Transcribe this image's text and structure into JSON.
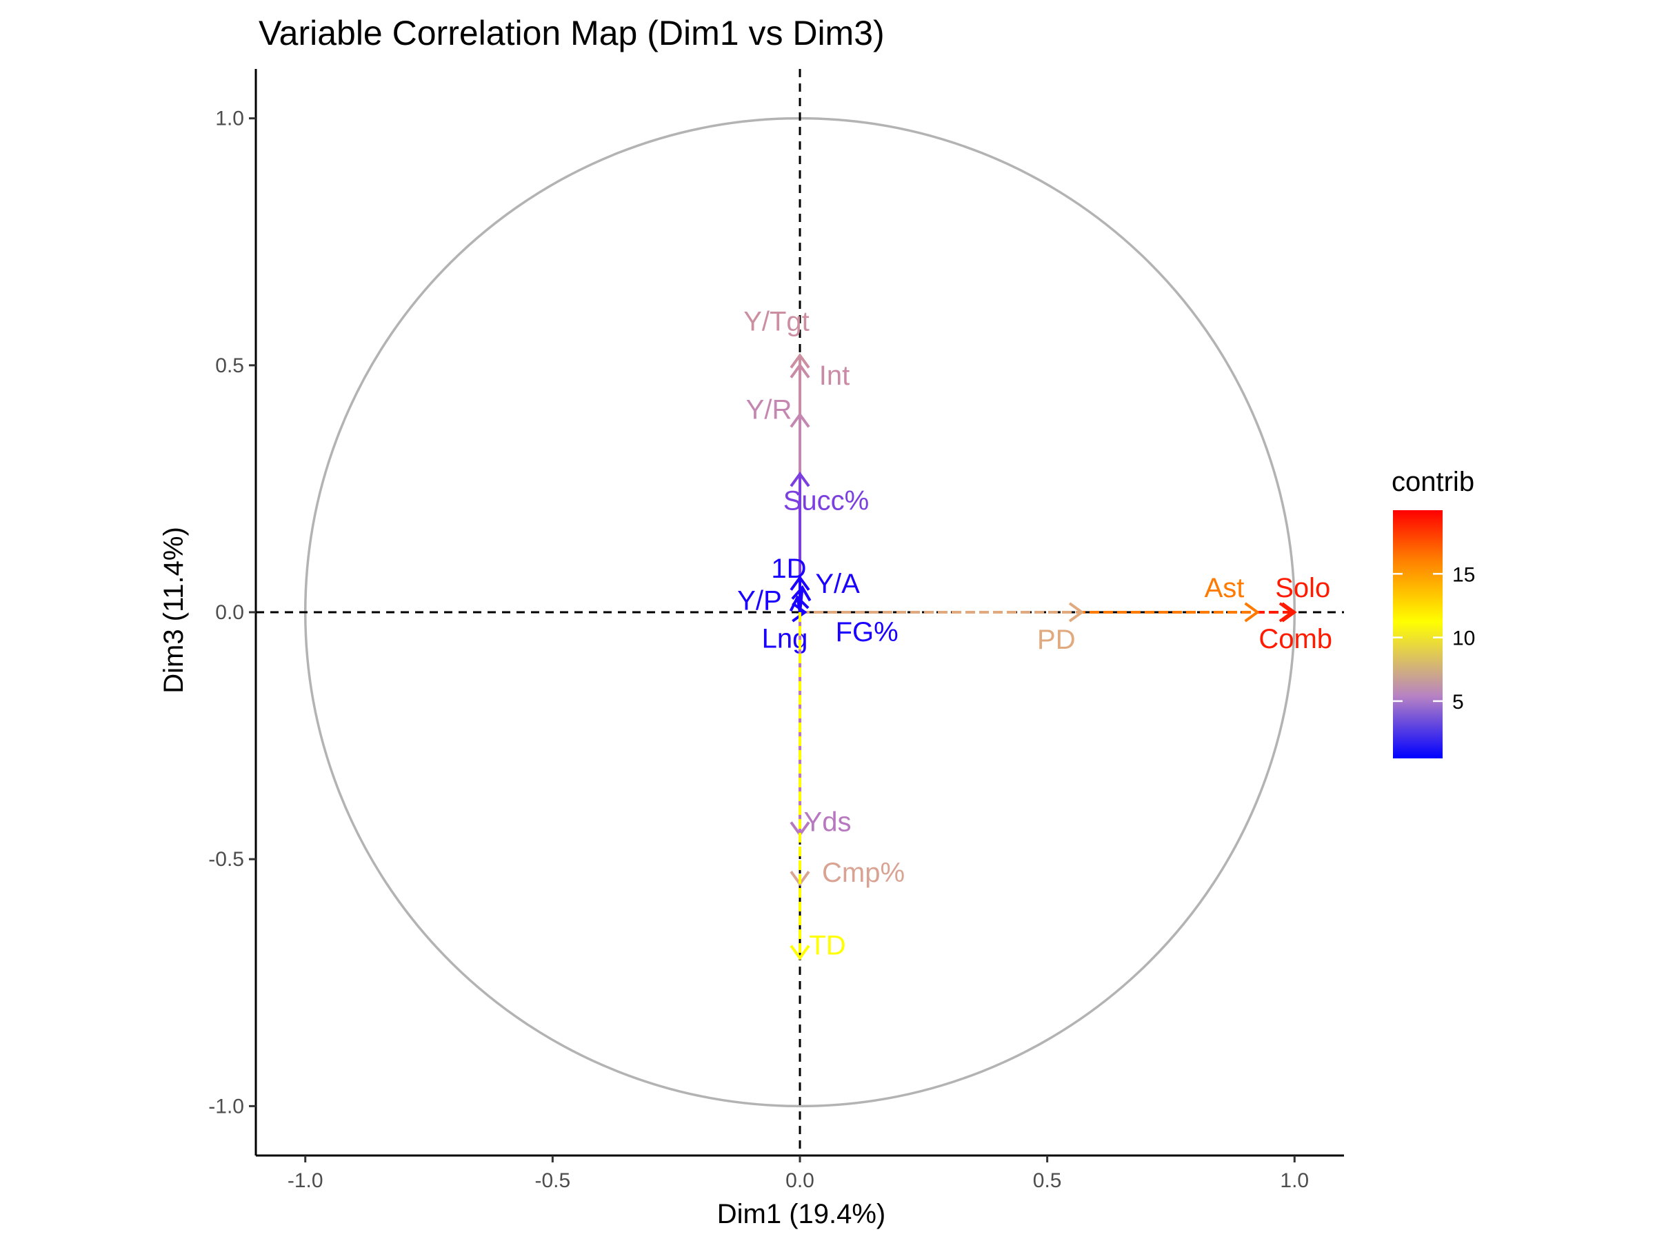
{
  "chart_data": {
    "type": "scatter",
    "title": "Variable Correlation Map (Dim1 vs Dim3)",
    "xlabel": "Dim1 (19.4%)",
    "ylabel": "Dim3 (11.4%)",
    "xlim": [
      -1.1,
      1.1
    ],
    "ylim": [
      -1.1,
      1.1
    ],
    "x_ticks": [
      -1.0,
      -0.5,
      0.0,
      0.5,
      1.0
    ],
    "y_ticks": [
      -1.0,
      -0.5,
      0.0,
      0.5,
      1.0
    ],
    "x_tick_labels": [
      "-1.0",
      "-0.5",
      "0.0",
      "0.5",
      "1.0"
    ],
    "y_tick_labels": [
      "-1.0",
      "-0.5",
      "0.0",
      "0.5",
      "1.0"
    ],
    "unit_circle": true,
    "circle_color": "#b3b3b3",
    "grid": false,
    "legend": {
      "title": "contrib",
      "placement": "right",
      "range": [
        0.5,
        20
      ],
      "ticks": [
        5,
        10,
        15
      ],
      "tick_labels": [
        "5",
        "10",
        "15"
      ],
      "gradient_colors": [
        "#0000ff",
        "#b682c4",
        "#ffff00",
        "#ff7f00",
        "#ff0000"
      ]
    },
    "variables": [
      {
        "name": "Solo",
        "label": "Solo",
        "x": 1.0,
        "y": 0.0,
        "contrib": 19.0,
        "color": "#ff1a00"
      },
      {
        "name": "Comb",
        "label": "Comb",
        "x": 0.995,
        "y": 0.0,
        "contrib": 18.5,
        "color": "#ff1a00"
      },
      {
        "name": "Ast",
        "label": "Ast",
        "x": 0.925,
        "y": 0.0,
        "contrib": 16.5,
        "color": "#ff7a00"
      },
      {
        "name": "PD",
        "label": "PD",
        "x": 0.57,
        "y": 0.0,
        "contrib": 7.5,
        "color": "#e0a97e"
      },
      {
        "name": "Y/Tgt",
        "label": "Y/Tgt",
        "x": 0.0,
        "y": 0.52,
        "contrib": 6.0,
        "color": "#cc8fa2"
      },
      {
        "name": "Int",
        "label": "Int",
        "x": 0.0,
        "y": 0.5,
        "contrib": 6.0,
        "color": "#c98aa6"
      },
      {
        "name": "Y/R",
        "label": "Y/R",
        "x": 0.0,
        "y": 0.4,
        "contrib": 5.0,
        "color": "#c487b2"
      },
      {
        "name": "Succ%",
        "label": "Succ%",
        "x": 0.0,
        "y": 0.28,
        "contrib": 3.0,
        "color": "#7b3fe0"
      },
      {
        "name": "1D",
        "label": "1D",
        "x": 0.0,
        "y": 0.07,
        "contrib": 0.8,
        "color": "#1a00ff"
      },
      {
        "name": "Y/P",
        "label": "Y/P",
        "x": -0.005,
        "y": 0.03,
        "contrib": 0.6,
        "color": "#1a00ff"
      },
      {
        "name": "Y/A",
        "label": "Y/A",
        "x": 0.005,
        "y": 0.05,
        "contrib": 0.6,
        "color": "#1a00ff"
      },
      {
        "name": "Lng",
        "label": "Lng",
        "x": 0.0,
        "y": 0.005,
        "contrib": 0.5,
        "color": "#1a00ff"
      },
      {
        "name": "FG%",
        "label": "FG%",
        "x": 0.01,
        "y": 0.0,
        "contrib": 0.5,
        "color": "#1a00ff"
      },
      {
        "name": "Yds",
        "label": "Yds",
        "x": 0.0,
        "y": -0.45,
        "contrib": 5.0,
        "color": "#b778c0"
      },
      {
        "name": "Cmp%",
        "label": "Cmp%",
        "x": 0.0,
        "y": -0.55,
        "contrib": 7.5,
        "color": "#d9a393"
      },
      {
        "name": "TD",
        "label": "TD",
        "x": 0.0,
        "y": -0.7,
        "contrib": 10.5,
        "color": "#ffff00"
      }
    ]
  }
}
